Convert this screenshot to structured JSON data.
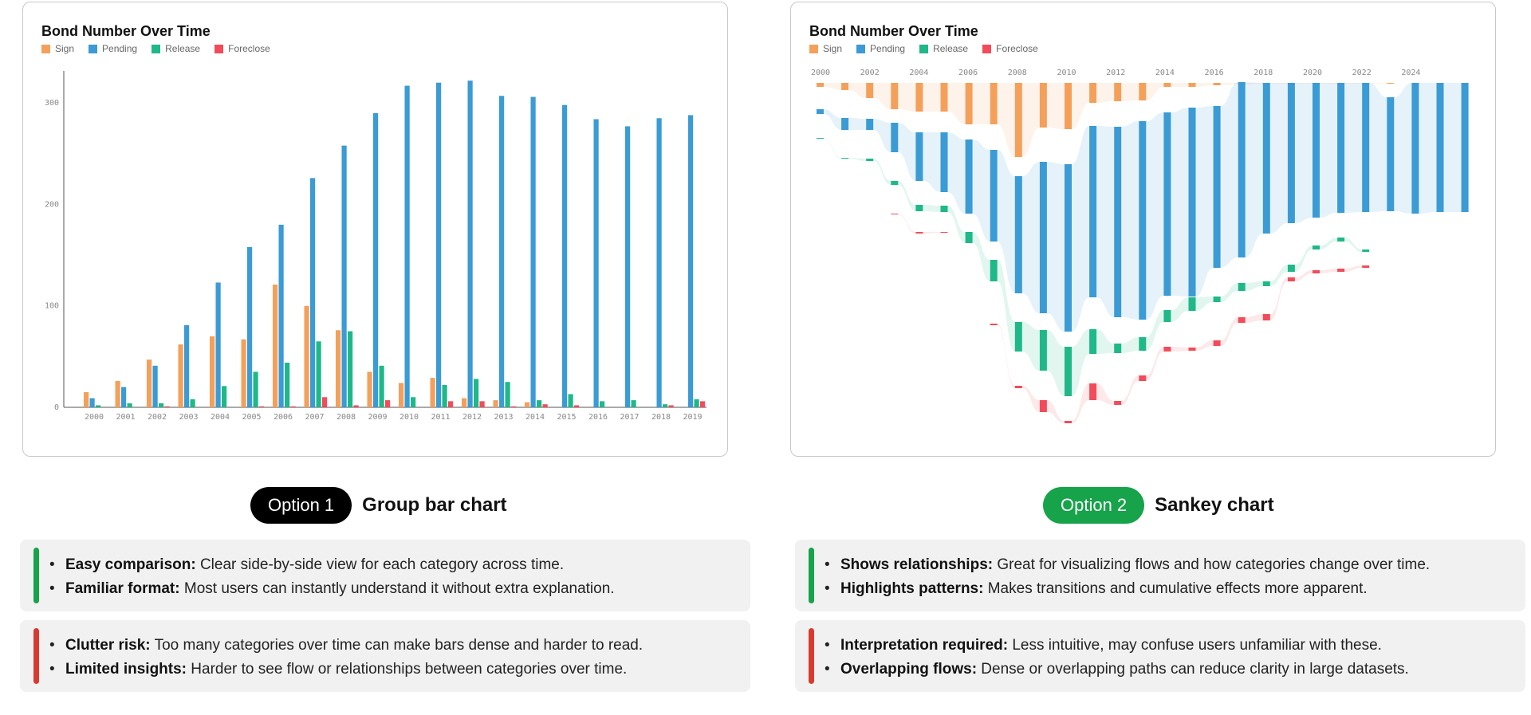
{
  "colors": {
    "sign": "#f4a05a",
    "pending": "#3a9bd5",
    "release": "#1fb888",
    "foreclose": "#f24b5a",
    "good": "#16a34a",
    "bad": "#d93a2f",
    "option1_pill": "#000000",
    "option2_pill": "#16a34a"
  },
  "chart_data": [
    {
      "type": "bar",
      "title": "Bond Number Over Time",
      "categories": [
        "2000",
        "2001",
        "2002",
        "2003",
        "2004",
        "2005",
        "2006",
        "2007",
        "2008",
        "2009",
        "2010",
        "2011",
        "2012",
        "2013",
        "2014",
        "2015",
        "2016",
        "2017",
        "2018",
        "2019"
      ],
      "series": [
        {
          "name": "Sign",
          "values": [
            15,
            26,
            47,
            62,
            70,
            67,
            121,
            100,
            76,
            35,
            24,
            29,
            9,
            7,
            5,
            0,
            0,
            0,
            0,
            0
          ]
        },
        {
          "name": "Pending",
          "values": [
            9,
            20,
            41,
            81,
            123,
            158,
            180,
            226,
            258,
            290,
            317,
            320,
            322,
            307,
            306,
            298,
            284,
            277,
            285,
            288
          ]
        },
        {
          "name": "Release",
          "values": [
            2,
            4,
            4,
            8,
            21,
            35,
            44,
            65,
            75,
            41,
            10,
            22,
            28,
            25,
            7,
            13,
            6,
            7,
            3,
            8
          ]
        },
        {
          "name": "Foreclose",
          "values": [
            0,
            0,
            1,
            0,
            0,
            1,
            1,
            10,
            2,
            7,
            0,
            6,
            6,
            1,
            3,
            2,
            0,
            0,
            2,
            6
          ]
        }
      ],
      "yticks": [
        0,
        100,
        200,
        300
      ],
      "ylim": [
        0,
        330
      ],
      "grid": false,
      "legend": "top-left"
    },
    {
      "type": "sankey",
      "title": "Bond Number Over Time",
      "years": [
        "2000",
        "2002",
        "2004",
        "2006",
        "2008",
        "2010",
        "2012",
        "2014",
        "2016",
        "2018",
        "2020",
        "2022",
        "2024"
      ],
      "categories": [
        "Sign",
        "Pending",
        "Release",
        "Foreclose"
      ],
      "legend": "top-left"
    }
  ],
  "option1": {
    "pill": "Option 1",
    "desc": "Group bar chart"
  },
  "option2": {
    "pill": "Option 2",
    "desc": "Sankey chart"
  },
  "pros1": [
    {
      "bold": "Easy comparison:",
      "text": " Clear side-by-side view for each category across time."
    },
    {
      "bold": "Familiar format:",
      "text": " Most users can instantly understand it without extra explanation."
    }
  ],
  "cons1": [
    {
      "bold": "Clutter risk:",
      "text": " Too many categories over time can make bars dense and harder to read."
    },
    {
      "bold": "Limited insights:",
      "text": " Harder to see flow or relationships between categories over time."
    }
  ],
  "pros2": [
    {
      "bold": "Shows relationships:",
      "text": " Great for visualizing flows and how categories change over time."
    },
    {
      "bold": "Highlights patterns:",
      "text": " Makes transitions and cumulative effects more apparent."
    }
  ],
  "cons2": [
    {
      "bold": "Interpretation required:",
      "text": " Less intuitive, may confuse users unfamiliar with these."
    },
    {
      "bold": "Overlapping flows:",
      "text": " Dense or overlapping paths can reduce clarity in large datasets."
    }
  ]
}
